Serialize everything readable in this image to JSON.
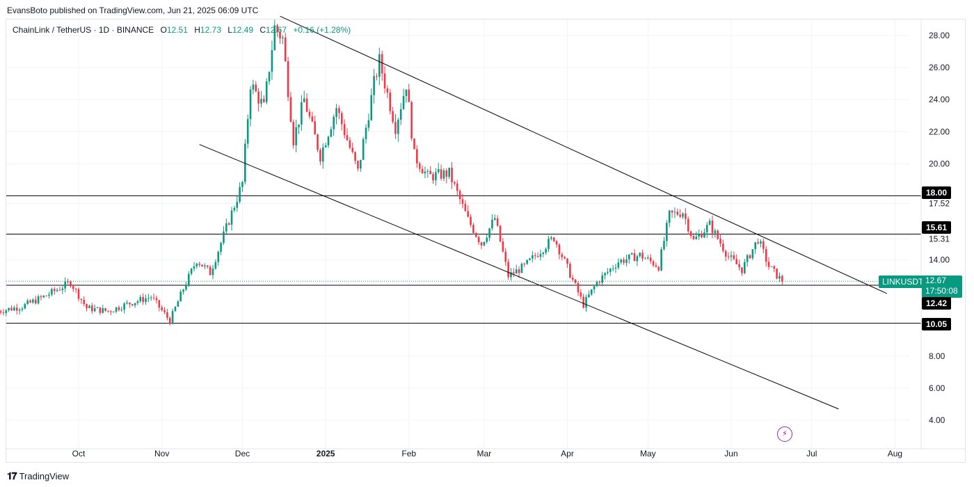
{
  "header": {
    "published": "EvansBoto published on TradingView.com, Jun 21, 2025 06:09 UTC"
  },
  "legend": {
    "symbol": "ChainLink / TetherUS · 1D · BINANCE",
    "o_label": "O",
    "o_value": "12.51",
    "h_label": "H",
    "h_value": "12.73",
    "l_label": "L",
    "l_value": "12.49",
    "c_label": "C",
    "c_value": "12.67",
    "change": "+0.16 (+1.28%)"
  },
  "price_scale": {
    "ticks": [
      "28.00",
      "26.00",
      "24.00",
      "22.00",
      "20.00",
      "17.52",
      "15.31",
      "14.00",
      "8.00",
      "6.00",
      "4.00"
    ],
    "ticker": "LINKUSDT",
    "last_price": "12.67",
    "countdown": "17:50:08",
    "levels": [
      "18.00",
      "15.61",
      "12.42",
      "10.05"
    ]
  },
  "time_scale": {
    "labels": [
      "Oct",
      "Nov",
      "Dec",
      "2025",
      "Feb",
      "Mar",
      "Apr",
      "May",
      "Jun",
      "Jul",
      "Aug"
    ]
  },
  "footer": {
    "brand": "TradingView",
    "logo_icon": "tradingview-logo-icon"
  },
  "colors": {
    "up": "#089981",
    "down": "#f23645",
    "grid": "#f0f3fa",
    "line": "#000000"
  },
  "chart_data": {
    "type": "candlestick",
    "title": "",
    "symbol": "LINKUSDT",
    "y_axis": {
      "min": 4,
      "max": 28,
      "ticks": [
        28,
        26,
        24,
        22,
        20,
        17.52,
        15.31,
        14,
        8,
        6,
        4
      ]
    },
    "x_axis": {
      "start": "2024-09-01",
      "end": "2025-08-15",
      "labels": [
        "Oct",
        "Nov",
        "Dec",
        "2025",
        "Feb",
        "Mar",
        "Apr",
        "May",
        "Jun",
        "Jul",
        "Aug"
      ],
      "label_dates": [
        "2024-10-01",
        "2024-11-01",
        "2024-12-01",
        "2025-01-01",
        "2025-02-01",
        "2025-03-01",
        "2025-04-01",
        "2025-05-01",
        "2025-06-01",
        "2025-07-01",
        "2025-08-01"
      ]
    },
    "horizontal_levels": [
      18.0,
      15.61,
      12.42,
      10.05
    ],
    "last_price": 12.67,
    "trendlines": [
      {
        "name": "upper-channel",
        "from": [
          "2024-12-15",
          29.2
        ],
        "to": [
          "2025-07-29",
          11.9
        ]
      },
      {
        "name": "lower-channel",
        "from": [
          "2024-11-15",
          21.2
        ],
        "to": [
          "2025-07-11",
          4.7
        ]
      }
    ],
    "anchors": [
      [
        "2024-09-01",
        10.8
      ],
      [
        "2024-09-10",
        11.1
      ],
      [
        "2024-09-18",
        11.7
      ],
      [
        "2024-09-28",
        12.6
      ],
      [
        "2024-10-04",
        11.0
      ],
      [
        "2024-10-12",
        10.8
      ],
      [
        "2024-10-20",
        11.3
      ],
      [
        "2024-10-28",
        11.7
      ],
      [
        "2024-11-04",
        10.2
      ],
      [
        "2024-11-09",
        12.2
      ],
      [
        "2024-11-14",
        14.0
      ],
      [
        "2024-11-19",
        13.2
      ],
      [
        "2024-11-25",
        16.0
      ],
      [
        "2024-12-01",
        18.8
      ],
      [
        "2024-12-04",
        25.0
      ],
      [
        "2024-12-09",
        23.5
      ],
      [
        "2024-12-13",
        28.5
      ],
      [
        "2024-12-16",
        27.8
      ],
      [
        "2024-12-20",
        21.5
      ],
      [
        "2024-12-24",
        24.0
      ],
      [
        "2024-12-30",
        20.5
      ],
      [
        "2025-01-05",
        23.5
      ],
      [
        "2025-01-13",
        19.5
      ],
      [
        "2025-01-19",
        25.0
      ],
      [
        "2025-01-21",
        26.4
      ],
      [
        "2025-01-27",
        22.3
      ],
      [
        "2025-01-31",
        25.0
      ],
      [
        "2025-02-03",
        20.5
      ],
      [
        "2025-02-08",
        19.2
      ],
      [
        "2025-02-16",
        19.4
      ],
      [
        "2025-02-23",
        16.5
      ],
      [
        "2025-02-28",
        15.0
      ],
      [
        "2025-03-05",
        16.6
      ],
      [
        "2025-03-10",
        13.0
      ],
      [
        "2025-03-16",
        13.6
      ],
      [
        "2025-03-27",
        15.4
      ],
      [
        "2025-04-01",
        13.5
      ],
      [
        "2025-04-07",
        11.2
      ],
      [
        "2025-04-12",
        12.6
      ],
      [
        "2025-04-20",
        13.9
      ],
      [
        "2025-04-28",
        14.3
      ],
      [
        "2025-05-05",
        13.6
      ],
      [
        "2025-05-09",
        16.8
      ],
      [
        "2025-05-14",
        17.0
      ],
      [
        "2025-05-18",
        15.2
      ],
      [
        "2025-05-24",
        16.2
      ],
      [
        "2025-05-31",
        14.2
      ],
      [
        "2025-06-05",
        13.4
      ],
      [
        "2025-06-11",
        15.3
      ],
      [
        "2025-06-15",
        13.6
      ],
      [
        "2025-06-20",
        12.67
      ]
    ]
  }
}
